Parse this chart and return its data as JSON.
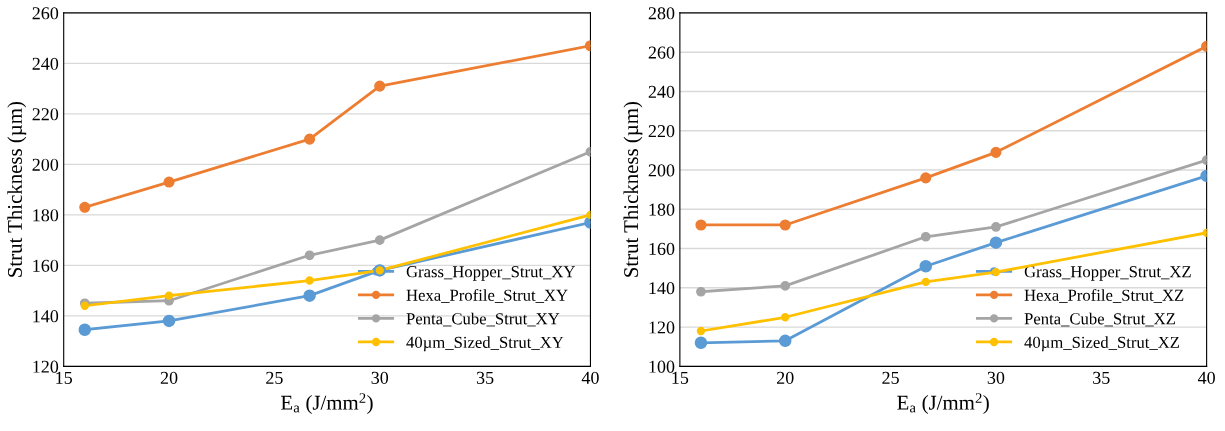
{
  "chart_data": [
    {
      "type": "line",
      "xlabel": "E$_{a}$ (J/mm$^{2}$)",
      "ylabel": "Strut Thickness (µm)",
      "x": [
        16,
        20,
        26.67,
        30,
        40
      ],
      "xlim": [
        15,
        40
      ],
      "xticks": [
        15,
        20,
        25,
        30,
        35,
        40
      ],
      "ylim": [
        120,
        260
      ],
      "yticks": [
        120,
        140,
        160,
        180,
        200,
        220,
        240,
        260
      ],
      "grid": "y",
      "legend": "bottom right",
      "marker": "circle",
      "line_style": "solid",
      "series": [
        {
          "name": "Grass_Hopper_Strut_XY",
          "color": "#5b9bd5",
          "values": [
            134.5,
            138,
            148,
            158,
            177
          ]
        },
        {
          "name": "Hexa_Profile_Strut_XY",
          "color": "#ed7d31",
          "values": [
            183,
            193,
            210,
            231,
            247
          ]
        },
        {
          "name": "Penta_Cube_Strut_XY",
          "color": "#a5a5a5",
          "values": [
            145,
            146,
            164,
            170,
            205
          ]
        },
        {
          "name": "40µm_Sized_Strut_XY",
          "color": "#ffc000",
          "values": [
            144,
            148,
            154,
            158,
            180
          ]
        }
      ]
    },
    {
      "type": "line",
      "xlabel": "E$_{a}$ (J/mm$^{2}$)",
      "ylabel": "Strut Thickness (µm)",
      "x": [
        16,
        20,
        26.67,
        30,
        40
      ],
      "xlim": [
        15,
        40
      ],
      "xticks": [
        15,
        20,
        25,
        30,
        35,
        40
      ],
      "ylim": [
        100,
        280
      ],
      "yticks": [
        100,
        120,
        140,
        160,
        180,
        200,
        220,
        240,
        260,
        280
      ],
      "grid": "y",
      "legend": "bottom right",
      "marker": "circle",
      "line_style": "solid",
      "series": [
        {
          "name": "Grass_Hopper_Strut_XZ",
          "color": "#5b9bd5",
          "values": [
            112,
            113,
            151,
            163,
            197
          ]
        },
        {
          "name": "Hexa_Profile_Strut_XZ",
          "color": "#ed7d31",
          "values": [
            172,
            172,
            196,
            209,
            263
          ]
        },
        {
          "name": "Penta_Cube_Strut_XZ",
          "color": "#a5a5a5",
          "values": [
            138,
            141,
            166,
            171,
            205
          ]
        },
        {
          "name": "40µm_Sized_Strut_XZ",
          "color": "#ffc000",
          "values": [
            118,
            125,
            143,
            148,
            168
          ]
        }
      ]
    }
  ]
}
